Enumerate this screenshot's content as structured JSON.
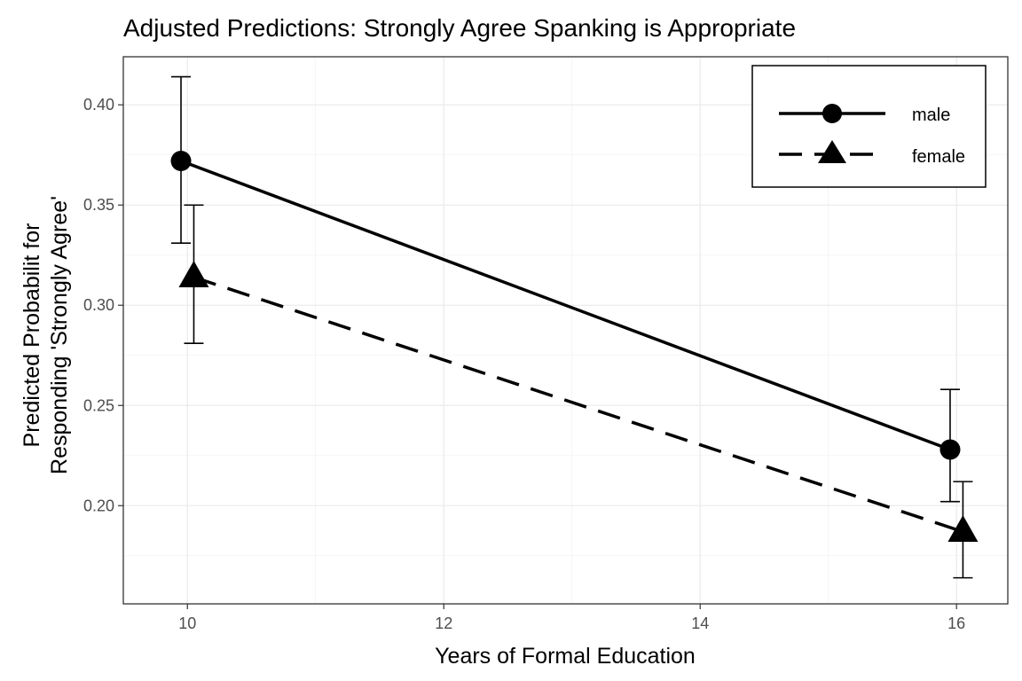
{
  "chart_data": {
    "type": "line",
    "title": "Adjusted Predictions: Strongly Agree Spanking is Appropriate",
    "xlabel": "Years of Formal Education",
    "ylabel_line1": "Predicted Probabilit for",
    "ylabel_line2": "Responding 'Strongly Agree'",
    "xlim": [
      9.5,
      16.4
    ],
    "ylim": [
      0.151,
      0.424
    ],
    "x_ticks": [
      10,
      12,
      14,
      16
    ],
    "x_tick_labels": [
      "10",
      "12",
      "14",
      "16"
    ],
    "y_ticks": [
      0.2,
      0.25,
      0.3,
      0.35,
      0.4
    ],
    "y_tick_labels": [
      "0.20",
      "0.25",
      "0.30",
      "0.35",
      "0.40"
    ],
    "grid": true,
    "legend_position": "top-right",
    "series": [
      {
        "name": "male",
        "marker": "circle",
        "linestyle": "solid",
        "x": [
          10,
          16
        ],
        "y": [
          0.372,
          0.228
        ],
        "ci_low": [
          0.331,
          0.202
        ],
        "ci_high": [
          0.414,
          0.258
        ]
      },
      {
        "name": "female",
        "marker": "triangle",
        "linestyle": "dashed",
        "x": [
          10,
          16
        ],
        "y": [
          0.314,
          0.187
        ],
        "ci_low": [
          0.281,
          0.164
        ],
        "ci_high": [
          0.35,
          0.212
        ]
      }
    ]
  }
}
